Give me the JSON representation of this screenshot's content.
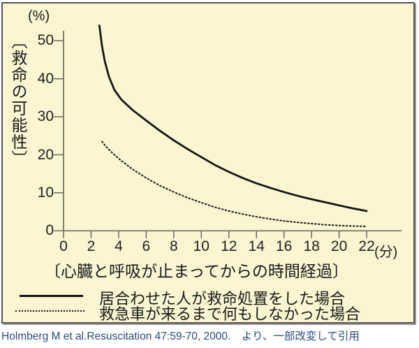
{
  "colors": {
    "panel_background": "#fbf5d1",
    "panel_border": "#55555d",
    "axis": "#6b6b62",
    "curve": "#151515",
    "text": "#1a1a1a",
    "citation": "#2c4a78"
  },
  "chart_data": {
    "type": "line",
    "unit_y": "(%)",
    "unit_x": "(分)",
    "ylabel": "〔救命の可能性〕",
    "xlabel": "〔心臓と呼吸が止まってからの時間経過〕",
    "x_ticks": [
      0,
      2,
      4,
      6,
      8,
      10,
      12,
      14,
      16,
      18,
      20,
      22
    ],
    "y_ticks": [
      0,
      10,
      20,
      30,
      40,
      50
    ],
    "xlim": [
      0,
      24.5
    ],
    "ylim": [
      0,
      55
    ],
    "grid": false,
    "legend_position": "below",
    "series": [
      {
        "name": "居合わせた人が救命処置をした場合",
        "style": "solid",
        "points": [
          [
            2.6,
            54
          ],
          [
            2.8,
            48.5
          ],
          [
            3,
            44.5
          ],
          [
            3.3,
            40.5
          ],
          [
            3.7,
            37
          ],
          [
            4.2,
            34.5
          ],
          [
            5,
            31.8
          ],
          [
            6,
            29
          ],
          [
            7,
            26.3
          ],
          [
            8,
            23.8
          ],
          [
            9,
            21.5
          ],
          [
            10,
            19.4
          ],
          [
            11,
            17.3
          ],
          [
            12,
            15.5
          ],
          [
            13,
            13.9
          ],
          [
            14,
            12.5
          ],
          [
            15,
            11.3
          ],
          [
            16,
            10.2
          ],
          [
            17,
            9.2
          ],
          [
            18,
            8.3
          ],
          [
            19,
            7.5
          ],
          [
            20,
            6.7
          ],
          [
            21,
            5.9
          ],
          [
            22,
            5.2
          ]
        ]
      },
      {
        "name": "救急車が来るまで何もしなかった場合",
        "style": "dotted",
        "points": [
          [
            2.8,
            23.5
          ],
          [
            3,
            22.5
          ],
          [
            3.5,
            20.6
          ],
          [
            4,
            19
          ],
          [
            5,
            16.2
          ],
          [
            6,
            13.9
          ],
          [
            7,
            11.9
          ],
          [
            8,
            10.2
          ],
          [
            9,
            8.7
          ],
          [
            10,
            7.4
          ],
          [
            11,
            6.2
          ],
          [
            12,
            5.2
          ],
          [
            13,
            4.4
          ],
          [
            14,
            3.7
          ],
          [
            15,
            3.1
          ],
          [
            16,
            2.6
          ],
          [
            17,
            2.2
          ],
          [
            18,
            1.9
          ],
          [
            19,
            1.6
          ],
          [
            20,
            1.4
          ],
          [
            21,
            1.25
          ],
          [
            22,
            1.15
          ]
        ]
      }
    ]
  },
  "citation": "Holmberg M et al.Resuscitation 47:59-70, 2000.　より、一部改変して引用"
}
